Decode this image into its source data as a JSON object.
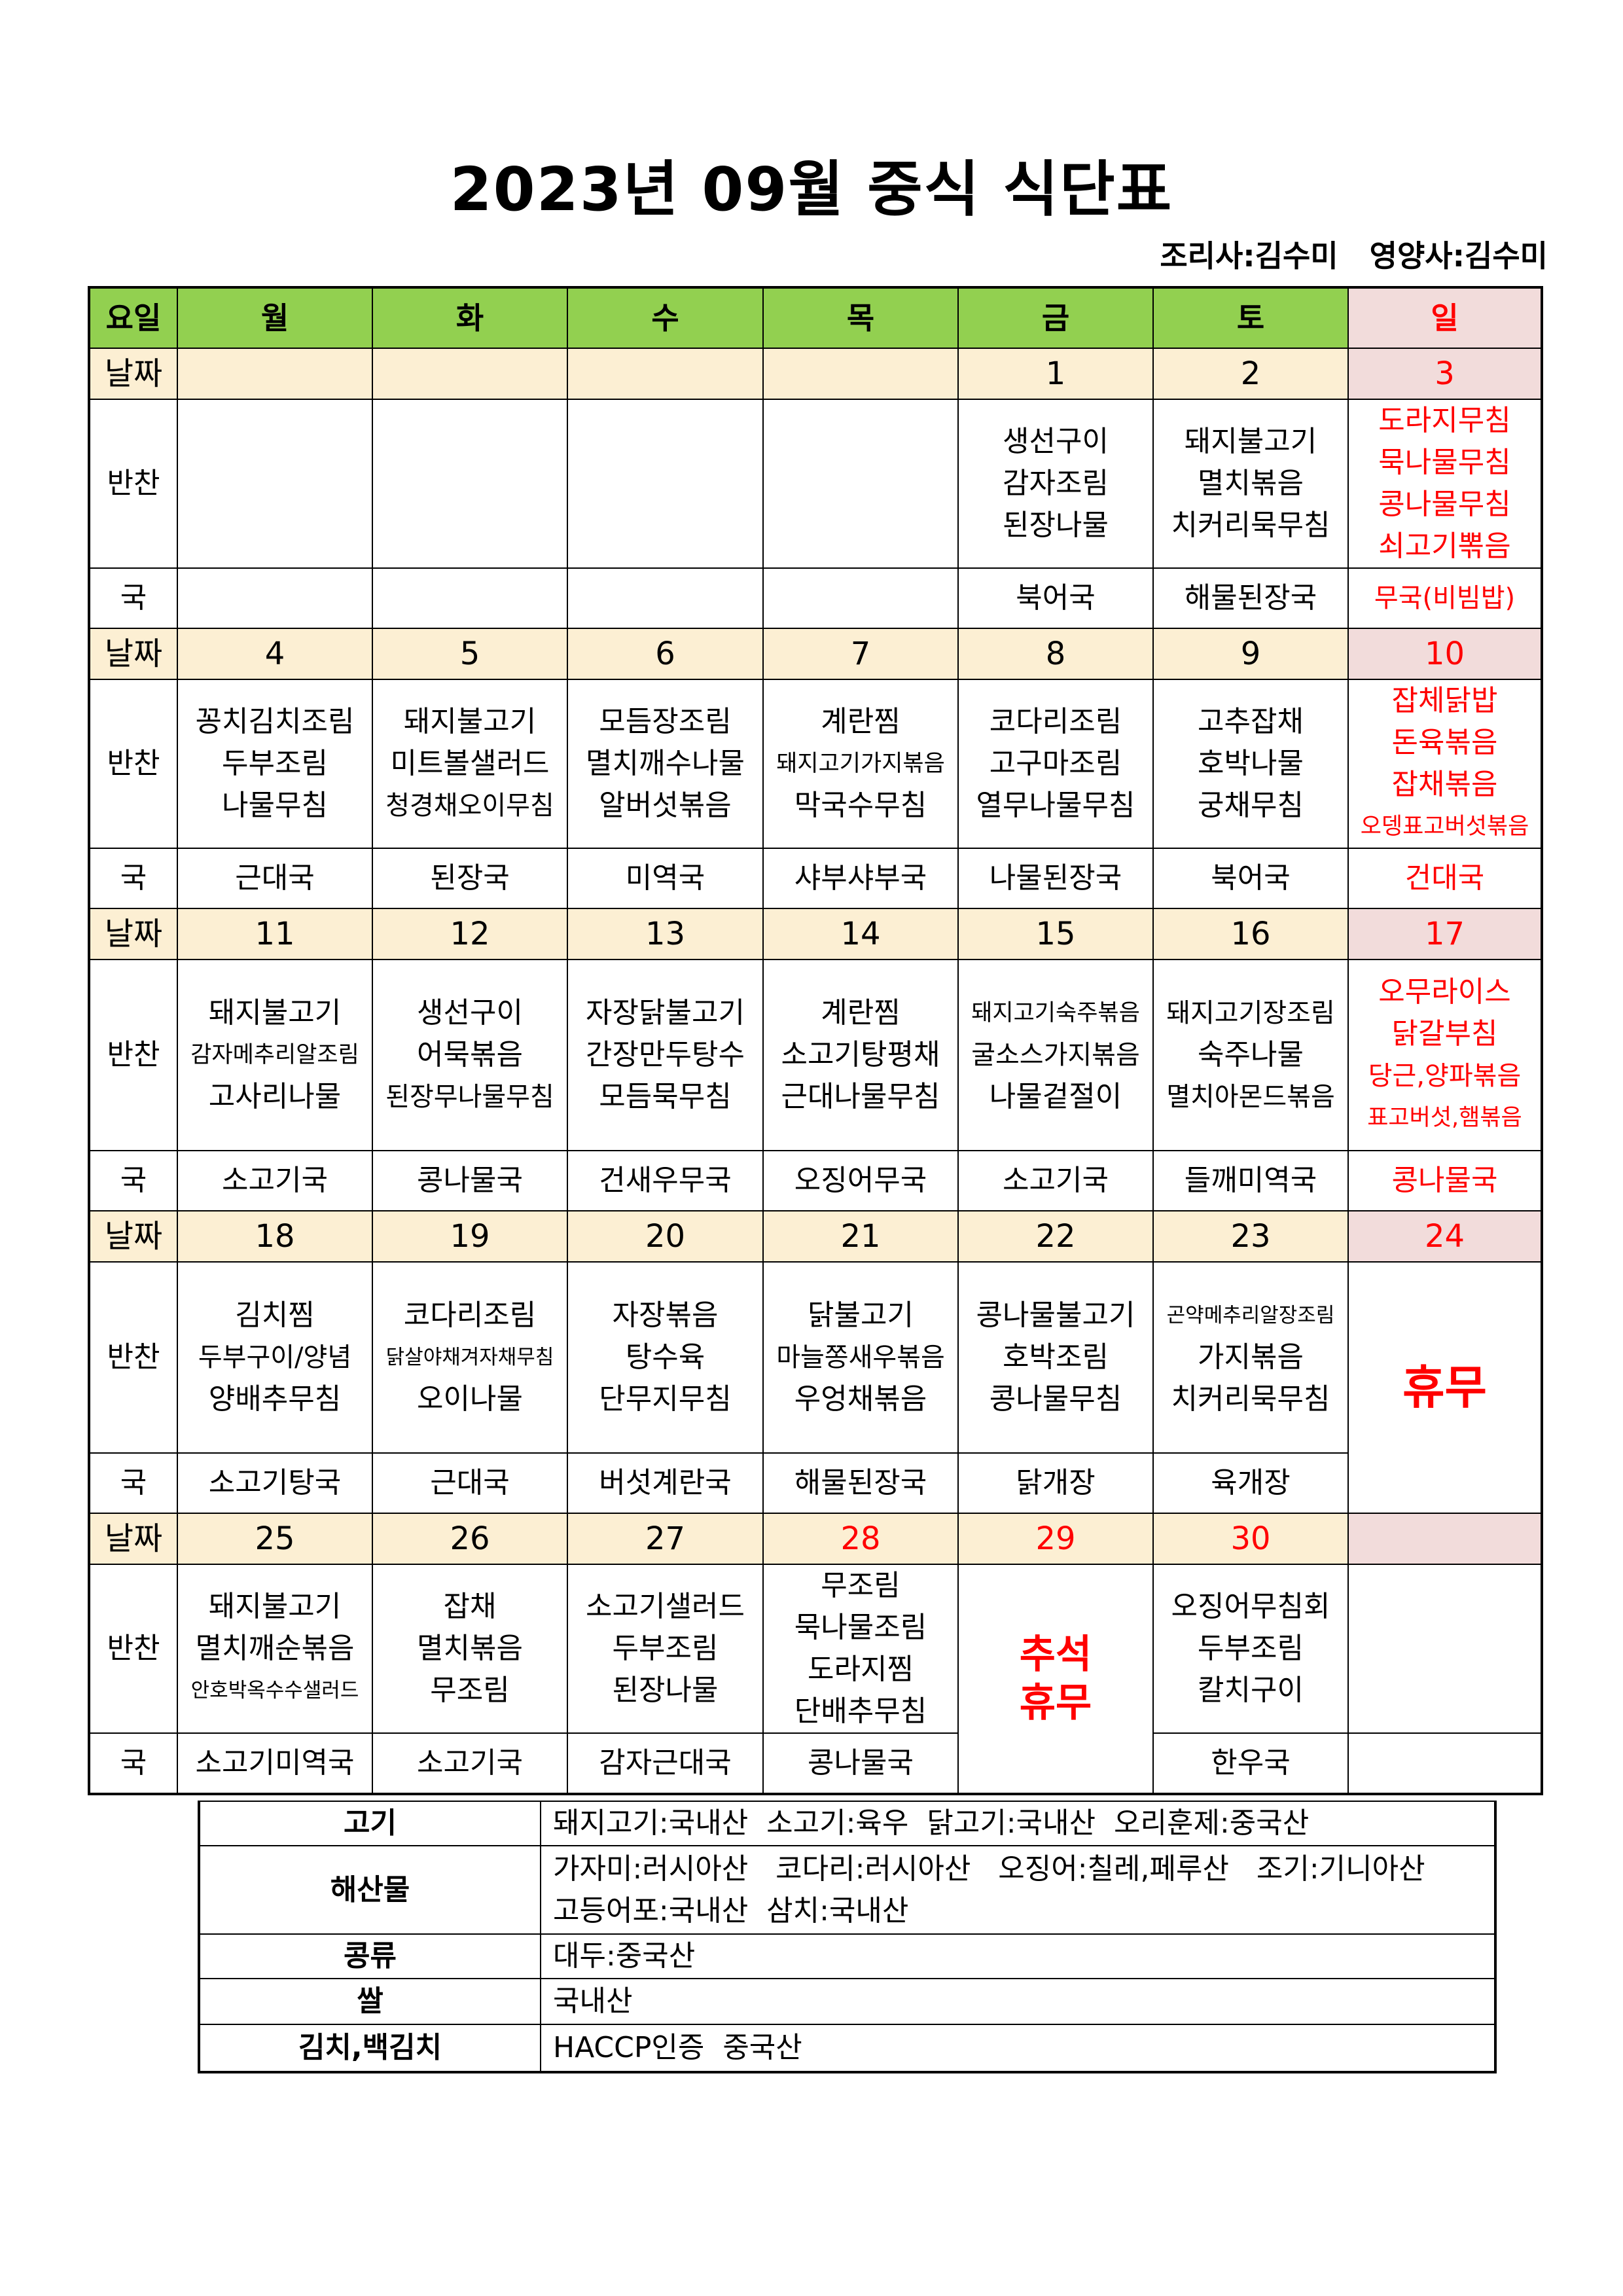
{
  "title": "2023년 09월 중식 식단표",
  "staff": {
    "cook": "조리사:김수미",
    "nutritionist": "영양사:김수미"
  },
  "colors": {
    "header_green": "#92d050",
    "date_row": "#fcefd3",
    "sunday_bg": "#f2dcdb",
    "holiday_red": "#ff0000"
  },
  "header": {
    "label": "요일",
    "days": [
      "월",
      "화",
      "수",
      "목",
      "금",
      "토",
      "일"
    ]
  },
  "row_labels": {
    "date": "날짜",
    "banchan": "반찬",
    "guk": "국"
  },
  "weeks": [
    {
      "dates": [
        "",
        "",
        "",
        "",
        "1",
        "2",
        "3"
      ],
      "red_dates": [
        6
      ],
      "banchan": [
        [],
        [],
        [],
        [],
        [
          "생선구이",
          "감자조림",
          "된장나물"
        ],
        [
          "돼지불고기",
          "멸치볶음",
          "치커리묵무침"
        ],
        [
          "도라지무침",
          "묵나물무침",
          "콩나물무침",
          "쇠고기뽂음"
        ]
      ],
      "guk": [
        "",
        "",
        "",
        "",
        "북어국",
        "해물된장국",
        "무국(비빔밥)"
      ]
    },
    {
      "dates": [
        "4",
        "5",
        "6",
        "7",
        "8",
        "9",
        "10"
      ],
      "red_dates": [
        6
      ],
      "banchan": [
        [
          "꽁치김치조림",
          "두부조림",
          "나물무침"
        ],
        [
          "돼지불고기",
          "미트볼샐러드",
          "청경채오이무침"
        ],
        [
          "모듬장조림",
          "멸치깨수나물",
          "알버섯볶음"
        ],
        [
          "계란찜",
          "돼지고기가지볶음",
          "막국수무침"
        ],
        [
          "코다리조림",
          "고구마조림",
          "열무나물무침"
        ],
        [
          "고추잡채",
          "호박나물",
          "궁채무침"
        ],
        [
          "잡체닭밥",
          "돈육볶음",
          "잡채볶음",
          "오뎅표고버섯볶음"
        ]
      ],
      "guk": [
        "근대국",
        "된장국",
        "미역국",
        "샤부샤부국",
        "나물된장국",
        "북어국",
        "건대국"
      ]
    },
    {
      "dates": [
        "11",
        "12",
        "13",
        "14",
        "15",
        "16",
        "17"
      ],
      "red_dates": [
        6
      ],
      "banchan": [
        [
          "돼지불고기",
          "감자메추리알조림",
          "고사리나물"
        ],
        [
          "생선구이",
          "어묵볶음",
          "된장무나물무침"
        ],
        [
          "자장닭불고기",
          "간장만두탕수",
          "모듬묵무침"
        ],
        [
          "계란찜",
          "소고기탕평채",
          "근대나물무침"
        ],
        [
          "돼지고기숙주볶음",
          "굴소스가지볶음",
          "나물겉절이"
        ],
        [
          "돼지고기장조림",
          "숙주나물",
          "멸치아몬드볶음"
        ],
        [
          "오무라이스",
          "닭갈부침",
          "당근,양파볶음",
          "표고버섯,햄볶음"
        ]
      ],
      "guk": [
        "소고기국",
        "콩나물국",
        "건새우무국",
        "오징어무국",
        "소고기국",
        "들깨미역국",
        "콩나물국"
      ]
    },
    {
      "dates": [
        "18",
        "19",
        "20",
        "21",
        "22",
        "23",
        "24"
      ],
      "red_dates": [
        6
      ],
      "banchan": [
        [
          "김치찜",
          "두부구이/양념",
          "양배추무침"
        ],
        [
          "코다리조림",
          "닭살야채겨자채무침",
          "오이나물"
        ],
        [
          "자장볶음",
          "탕수육",
          "단무지무침"
        ],
        [
          "닭불고기",
          "마늘쫑새우볶음",
          "우엉채볶음"
        ],
        [
          "콩나물불고기",
          "호박조림",
          "콩나물무침"
        ],
        [
          "곤약메추리알장조림",
          "가지볶음",
          "치커리묵무침"
        ],
        []
      ],
      "guk": [
        "소고기탕국",
        "근대국",
        "버섯계란국",
        "해물된장국",
        "닭개장",
        "육개장",
        ""
      ],
      "closure": {
        "day": 6,
        "lines": [
          "휴무"
        ]
      }
    },
    {
      "dates": [
        "25",
        "26",
        "27",
        "28",
        "29",
        "30",
        ""
      ],
      "red_dates": [
        3,
        4,
        5
      ],
      "banchan": [
        [
          "돼지불고기",
          "멸치깨순볶음",
          "안호박옥수수샐러드"
        ],
        [
          "잡채",
          "멸치볶음",
          "무조림"
        ],
        [
          "소고기샐러드",
          "두부조림",
          "된장나물"
        ],
        [
          "무조림",
          "묵나물조림",
          "도라지찜",
          "단배추무침"
        ],
        [],
        [
          "오징어무침회",
          "두부조림",
          "칼치구이"
        ],
        []
      ],
      "guk": [
        "소고기미역국",
        "소고기국",
        "감자근대국",
        "콩나물국",
        "",
        "한우국",
        ""
      ],
      "closure": {
        "day": 4,
        "lines": [
          "추석",
          "휴무"
        ]
      }
    }
  ],
  "origin": [
    {
      "item": "고기",
      "lines": [
        "돼지고기:국내산  소고기:육우  닭고기:국내산  오리훈제:중국산"
      ]
    },
    {
      "item": "해산물",
      "lines": [
        "가자미:러시아산   코다리:러시아산   오징어:칠레,페루산   조기:기니아산",
        "고등어포:국내산  삼치:국내산"
      ]
    },
    {
      "item": "콩류",
      "lines": [
        "대두:중국산"
      ]
    },
    {
      "item": "쌀",
      "lines": [
        "국내산"
      ]
    },
    {
      "item": "김치,백김치",
      "lines": [
        "HACCP인증  중국산"
      ]
    }
  ]
}
